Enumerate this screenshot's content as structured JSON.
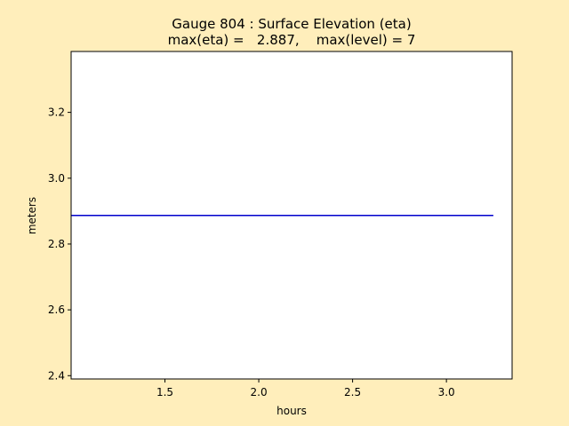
{
  "chart_data": {
    "type": "line",
    "title_line1": "Gauge 804 : Surface Elevation (eta)",
    "title_line2": "max(eta) =   2.887,    max(level) = 7",
    "xlabel": "hours",
    "ylabel": "meters",
    "xlim": [
      1.0,
      3.35
    ],
    "ylim": [
      2.39,
      3.385
    ],
    "x_ticks": [
      1.5,
      2.0,
      2.5,
      3.0
    ],
    "x_tick_labels": [
      "1.5",
      "2.0",
      "2.5",
      "3.0"
    ],
    "y_ticks": [
      2.4,
      2.6,
      2.8,
      3.0,
      3.2
    ],
    "y_tick_labels": [
      "2.4",
      "2.6",
      "2.8",
      "3.0",
      "3.2"
    ],
    "grid": false,
    "series": [
      {
        "color": "#0000cc",
        "x": [
          1.0,
          1.25,
          1.5,
          1.75,
          2.0,
          2.25,
          2.5,
          2.75,
          3.0,
          3.25
        ],
        "y": [
          2.887,
          2.887,
          2.887,
          2.887,
          2.887,
          2.887,
          2.887,
          2.887,
          2.887,
          2.887
        ]
      }
    ]
  },
  "colors": {
    "figure_bg": "#ffeebb",
    "axes_bg": "#ffffff",
    "line": "#0000cc"
  }
}
